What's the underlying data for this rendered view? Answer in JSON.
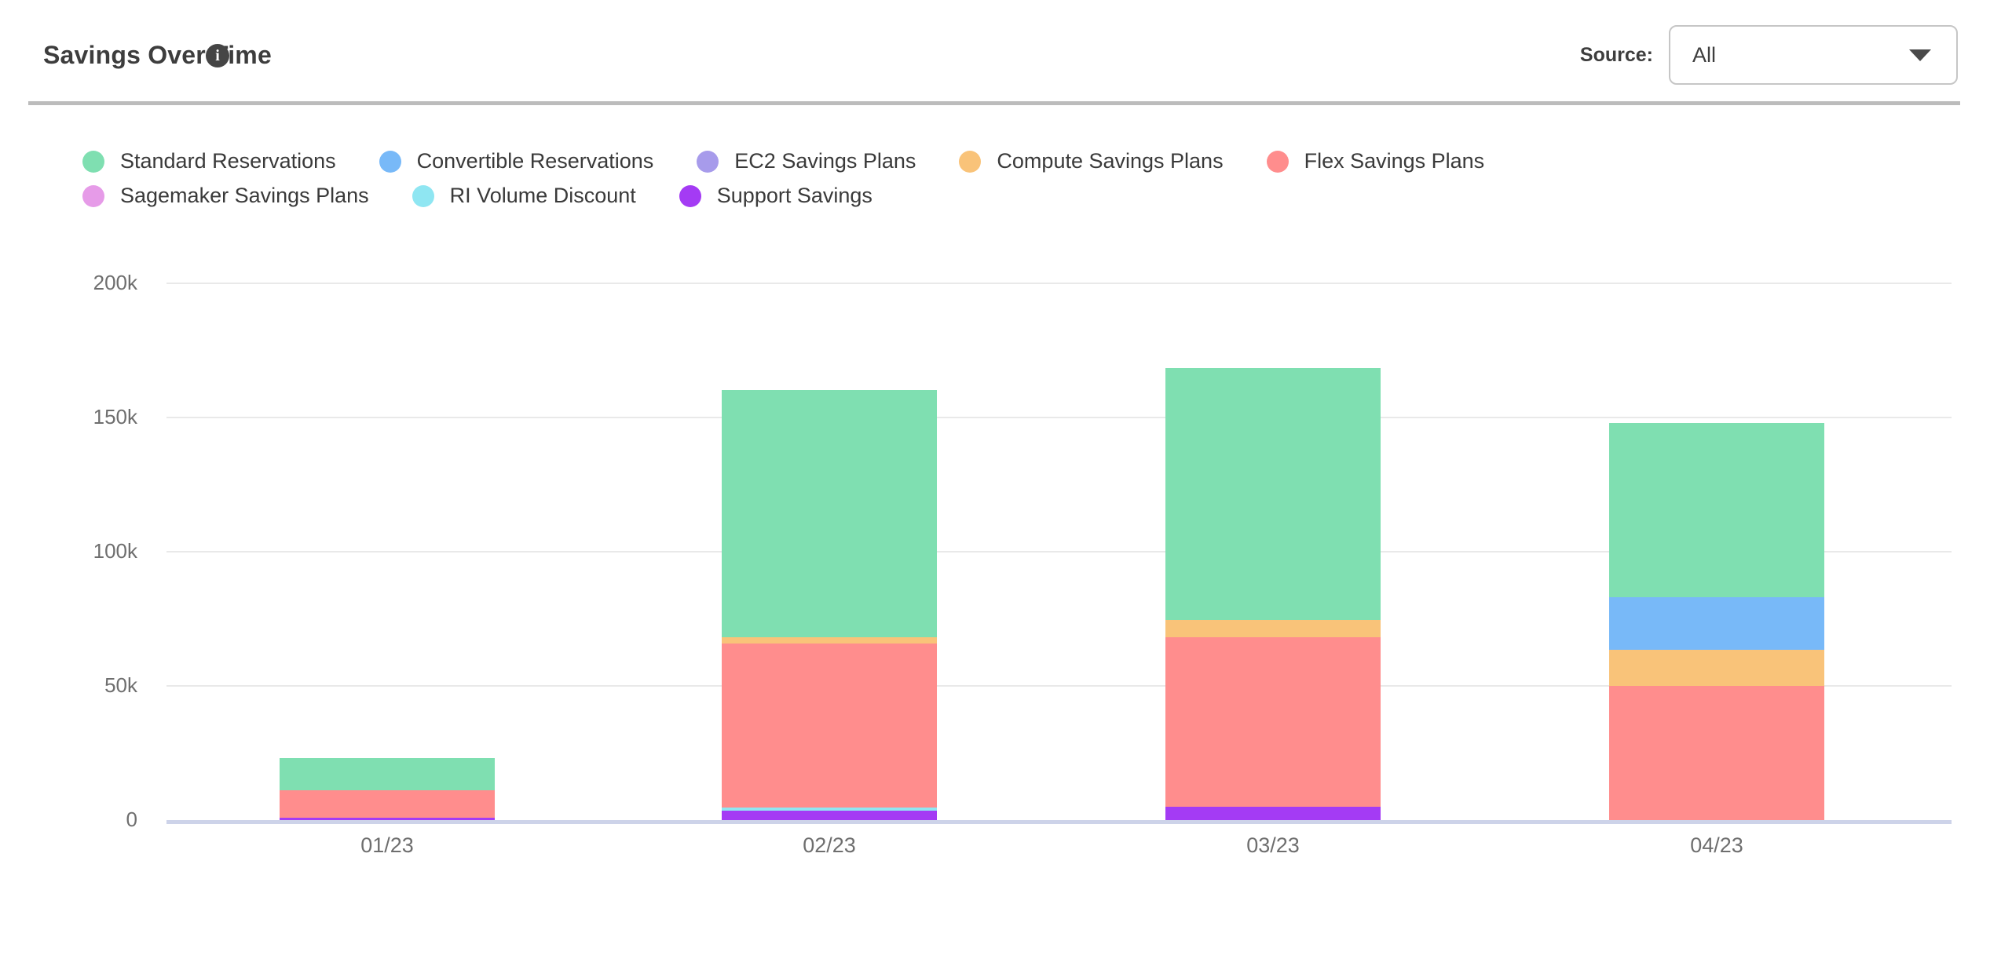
{
  "header": {
    "title": "Savings Over Time",
    "info_icon_glyph": "i",
    "source_label": "Source:",
    "source_value": "All"
  },
  "chart_data": {
    "type": "bar",
    "stacked": true,
    "title": "Savings Over Time",
    "categories": [
      "01/23",
      "02/23",
      "03/23",
      "04/23"
    ],
    "series": [
      {
        "name": "Standard Reservations",
        "color": "#7FDFB1",
        "values": [
          12000,
          92000,
          94000,
          65000
        ]
      },
      {
        "name": "Convertible Reservations",
        "color": "#78B9F8",
        "values": [
          0,
          0,
          0,
          19500
        ]
      },
      {
        "name": "EC2 Savings Plans",
        "color": "#A79BEB",
        "values": [
          0,
          0,
          0,
          0
        ]
      },
      {
        "name": "Compute Savings Plans",
        "color": "#F9C379",
        "values": [
          0,
          2500,
          6500,
          13500
        ]
      },
      {
        "name": "Flex Savings Plans",
        "color": "#FF8D8D",
        "values": [
          10000,
          61000,
          63000,
          50000
        ]
      },
      {
        "name": "Sagemaker Savings Plans",
        "color": "#E69BE8",
        "values": [
          0,
          0,
          0,
          0
        ]
      },
      {
        "name": "RI Volume Discount",
        "color": "#8FE6F2",
        "values": [
          0,
          1200,
          0,
          0
        ]
      },
      {
        "name": "Support Savings",
        "color": "#A43BF4",
        "values": [
          1000,
          3500,
          5000,
          0
        ]
      }
    ],
    "stack_order_bottom_to_top": [
      "Support Savings",
      "RI Volume Discount",
      "Sagemaker Savings Plans",
      "Flex Savings Plans",
      "Compute Savings Plans",
      "EC2 Savings Plans",
      "Convertible Reservations",
      "Standard Reservations"
    ],
    "ylim": [
      0,
      200000
    ],
    "yticks": [
      {
        "value": 0,
        "label": "0"
      },
      {
        "value": 50000,
        "label": "50k"
      },
      {
        "value": 100000,
        "label": "100k"
      },
      {
        "value": 150000,
        "label": "150k"
      },
      {
        "value": 200000,
        "label": "200k"
      }
    ],
    "grid": true,
    "legend_position": "top",
    "legend_rows": [
      [
        0,
        1,
        2,
        3,
        4
      ],
      [
        5,
        6,
        7
      ]
    ]
  },
  "colors": {
    "axis_label": "#6E6E6E",
    "gridline": "#E9E9E9",
    "baseline": "#CDD3E9",
    "separator": "#BCBCBC",
    "title_text": "#3D3D3D",
    "legend_text": "#3A3A3A"
  }
}
